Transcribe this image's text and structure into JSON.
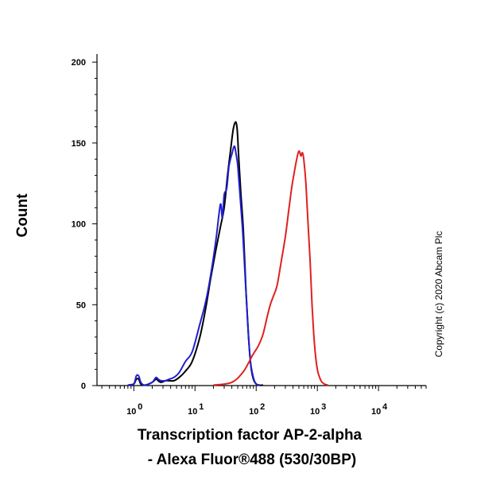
{
  "chart_data": {
    "type": "line",
    "title": "",
    "xlabel_line1": "Transcription factor AP-2-alpha",
    "xlabel_line2": "- Alexa Fluor®488 (530/30BP)",
    "ylabel": "Count",
    "x_scale": "log",
    "xlim": [
      0.25,
      60000
    ],
    "ylim": [
      0,
      205
    ],
    "y_ticks": [
      0,
      50,
      100,
      150,
      200
    ],
    "x_ticks": [
      {
        "value": 1,
        "base": "10",
        "exp": "0"
      },
      {
        "value": 10,
        "base": "10",
        "exp": "1"
      },
      {
        "value": 100,
        "base": "10",
        "exp": "2"
      },
      {
        "value": 1000,
        "base": "10",
        "exp": "3"
      },
      {
        "value": 10000,
        "base": "10",
        "exp": "4"
      }
    ],
    "grid": false,
    "legend": "none",
    "copyright": "Copyright (c) 2020 Abcam Plc",
    "series": [
      {
        "color": "#000000",
        "x": [
          0.8,
          1.0,
          1.1,
          1.2,
          1.3,
          1.5,
          2.0,
          2.3,
          2.5,
          2.8,
          3.3,
          3.8,
          4.5,
          5.5,
          7,
          9,
          12,
          15,
          18,
          22,
          26,
          30,
          34,
          38,
          42,
          46,
          49,
          52,
          56,
          62,
          68,
          75,
          82,
          90,
          100,
          115,
          130
        ],
        "y": [
          0,
          1,
          4,
          4,
          1,
          0,
          2,
          4,
          3,
          2,
          3,
          3,
          3,
          5,
          9,
          15,
          30,
          48,
          66,
          84,
          98,
          110,
          130,
          145,
          158,
          163,
          158,
          140,
          120,
          95,
          60,
          30,
          12,
          4,
          1,
          0,
          0
        ]
      },
      {
        "color": "#1f1fd0",
        "x": [
          0.8,
          1.0,
          1.1,
          1.2,
          1.3,
          1.5,
          2.0,
          2.3,
          2.5,
          2.8,
          3.3,
          3.8,
          4.5,
          5.5,
          7,
          9,
          12,
          15,
          18,
          22,
          26,
          28,
          30,
          33,
          36,
          40,
          44,
          47,
          50,
          54,
          60,
          66,
          72,
          80,
          90,
          100,
          115
        ],
        "y": [
          0,
          1,
          6,
          6,
          2,
          0,
          2,
          5,
          4,
          3,
          3,
          4,
          5,
          8,
          15,
          21,
          38,
          52,
          68,
          90,
          112,
          104,
          118,
          122,
          136,
          143,
          148,
          143,
          136,
          120,
          96,
          68,
          42,
          16,
          5,
          1,
          0
        ]
      },
      {
        "color": "#e02020",
        "x": [
          20,
          40,
          60,
          75,
          85,
          95,
          110,
          130,
          150,
          170,
          190,
          220,
          260,
          300,
          340,
          380,
          420,
          460,
          500,
          540,
          570,
          600,
          650,
          700,
          760,
          820,
          900,
          1000,
          1150,
          1300,
          1500
        ],
        "y": [
          0,
          2,
          8,
          14,
          18,
          21,
          25,
          32,
          42,
          50,
          55,
          62,
          78,
          92,
          108,
          122,
          132,
          140,
          145,
          142,
          144,
          140,
          125,
          102,
          78,
          50,
          25,
          10,
          3,
          1,
          0
        ]
      }
    ]
  }
}
